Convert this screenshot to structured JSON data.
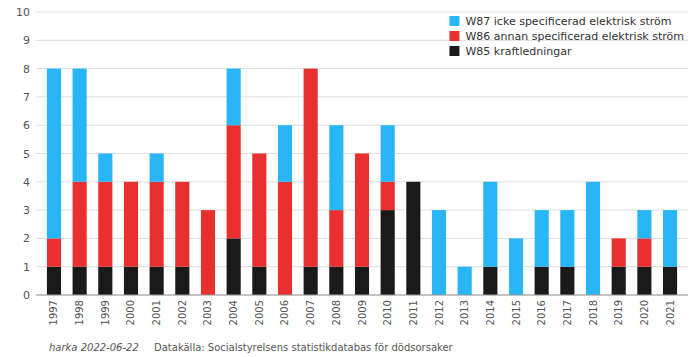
{
  "chart_data": {
    "type": "bar",
    "stacked": true,
    "categories": [
      "1997",
      "1998",
      "1999",
      "2000",
      "2001",
      "2002",
      "2003",
      "2004",
      "2005",
      "2006",
      "2007",
      "2008",
      "2009",
      "2010",
      "2011",
      "2012",
      "2013",
      "2014",
      "2015",
      "2016",
      "2017",
      "2018",
      "2019",
      "2020",
      "2021"
    ],
    "series": [
      {
        "name": "W85 kraftledningar",
        "color": "#1a1a1a",
        "values": [
          1,
          1,
          1,
          1,
          1,
          1,
          0,
          2,
          1,
          0,
          1,
          1,
          1,
          3,
          4,
          0,
          0,
          1,
          0,
          1,
          1,
          0,
          1,
          1,
          1
        ]
      },
      {
        "name": "W86 annan specificerad elektrisk ström",
        "color": "#e83030",
        "values": [
          1,
          3,
          3,
          3,
          3,
          3,
          3,
          4,
          4,
          4,
          7,
          2,
          4,
          1,
          0,
          0,
          0,
          0,
          0,
          0,
          0,
          0,
          1,
          1,
          0
        ]
      },
      {
        "name": "W87 icke specificerad elektrisk ström",
        "color": "#29b6f6",
        "values": [
          6,
          4,
          1,
          0,
          1,
          0,
          0,
          2,
          0,
          2,
          0,
          3,
          0,
          2,
          0,
          3,
          1,
          3,
          2,
          2,
          2,
          4,
          0,
          1,
          2
        ]
      }
    ],
    "ylim": [
      0,
      10
    ],
    "yticks": [
      0,
      1,
      2,
      3,
      4,
      5,
      6,
      7,
      8,
      9,
      10
    ],
    "grid": true,
    "legend": "upper right",
    "annotations": [
      "harka 2022-06-22",
      "Datakälla: Socialstyrelsens statistikdatabas för dödsorsaker"
    ]
  }
}
